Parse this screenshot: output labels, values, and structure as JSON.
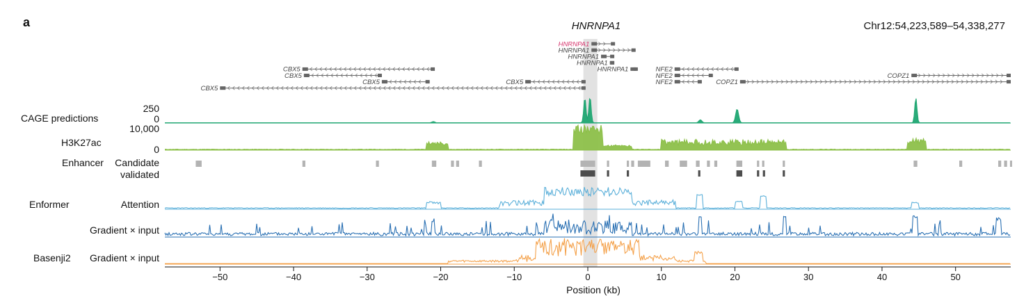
{
  "panel_letter": "a",
  "gene_title": "HNRNPA1",
  "coordinates": "Chr12:54,223,589–54,338,277",
  "genes": [
    {
      "name": "HNRNPA1",
      "start": 0.5,
      "end": 3.7,
      "row": 0,
      "strand": "+",
      "highlight": true
    },
    {
      "name": "HNRNPA1",
      "start": 0.5,
      "end": 6.5,
      "row": 1,
      "strand": "+",
      "highlight": false
    },
    {
      "name": "HNRNPA1",
      "start": 1.8,
      "end": 3.6,
      "row": 2,
      "strand": "+",
      "highlight": false
    },
    {
      "name": "HNRNPA1",
      "start": 3.0,
      "end": 3.6,
      "row": 3,
      "strand": "+",
      "highlight": false
    },
    {
      "name": "HNRNPA1",
      "start": 5.8,
      "end": 6.8,
      "row": 4,
      "strand": "+",
      "highlight": false
    },
    {
      "name": "CBX5",
      "start": -38.8,
      "end": -20.8,
      "row": 4,
      "strand": "-",
      "highlight": false
    },
    {
      "name": "CBX5",
      "start": -38.6,
      "end": -28.0,
      "row": 5,
      "strand": "-",
      "highlight": false
    },
    {
      "name": "CBX5",
      "start": -28.0,
      "end": -21.5,
      "row": 6,
      "strand": "-",
      "highlight": false
    },
    {
      "name": "CBX5",
      "start": -8.5,
      "end": -0.3,
      "row": 6,
      "strand": "-",
      "highlight": false
    },
    {
      "name": "CBX5",
      "start": -50.0,
      "end": -0.3,
      "row": 7,
      "strand": "-",
      "highlight": false
    },
    {
      "name": "NFE2",
      "start": 11.8,
      "end": 20.5,
      "row": 4,
      "strand": "-",
      "highlight": false
    },
    {
      "name": "NFE2",
      "start": 11.8,
      "end": 17.0,
      "row": 5,
      "strand": "-",
      "highlight": false
    },
    {
      "name": "NFE2",
      "start": 11.8,
      "end": 15.5,
      "row": 6,
      "strand": "-",
      "highlight": false
    },
    {
      "name": "COPZ1",
      "start": 44.0,
      "end": 57.5,
      "row": 5,
      "strand": "+",
      "highlight": false
    },
    {
      "name": "COPZ1",
      "start": 20.7,
      "end": 57.5,
      "row": 6,
      "strand": "+",
      "highlight": false
    }
  ],
  "tracks": {
    "cage": {
      "label": "CAGE predictions",
      "ymax": "250",
      "ymin": "0",
      "color": "#1fa672"
    },
    "h3k27ac": {
      "label": "H3K27ac",
      "ymax": "10,000",
      "ymin": "0",
      "color": "#8dc04a"
    },
    "enhancer": {
      "label_left": "Enhancer",
      "label_candidate": "Candidate",
      "label_validated": "validated",
      "candidate_color": "#b3b3b3",
      "validated_color": "#4d4d4d",
      "candidate": [
        [
          -53.3,
          -52.5
        ],
        [
          -38.8,
          -38.4
        ],
        [
          -28.8,
          -28.4
        ],
        [
          -21.2,
          -20.6
        ],
        [
          -18.6,
          -18.2
        ],
        [
          -17.9,
          -17.5
        ],
        [
          -14.8,
          -14.4
        ],
        [
          -1.0,
          1.0
        ],
        [
          2.6,
          2.9
        ],
        [
          5.3,
          5.6
        ],
        [
          5.9,
          6.3
        ],
        [
          6.8,
          8.5
        ],
        [
          10.5,
          11.0
        ],
        [
          12.5,
          13.5
        ],
        [
          14.7,
          15.2
        ],
        [
          16.2,
          16.6
        ],
        [
          17.2,
          17.6
        ],
        [
          20.2,
          21.0
        ],
        [
          23.0,
          23.3
        ],
        [
          23.7,
          24.0
        ],
        [
          26.5,
          26.8
        ],
        [
          44.3,
          44.8
        ],
        [
          50.5,
          50.9
        ],
        [
          55.8,
          56.2
        ],
        [
          56.6,
          57.0
        ],
        [
          57.4,
          57.6
        ]
      ],
      "validated": [
        [
          -1.0,
          1.0
        ],
        [
          2.6,
          2.9
        ],
        [
          5.3,
          5.6
        ],
        [
          15.0,
          15.3
        ],
        [
          20.2,
          21.0
        ],
        [
          23.0,
          23.3
        ],
        [
          23.8,
          24.1
        ],
        [
          26.5,
          26.8
        ]
      ]
    },
    "attention": {
      "label": "Attention",
      "color": "#5aafd9"
    },
    "grad_enformer": {
      "label": "Gradient × input",
      "color": "#2a70b3"
    },
    "grad_basenji": {
      "label": "Gradient × input",
      "color": "#f4a14a"
    }
  },
  "model_labels": {
    "enformer": "Enformer",
    "basenji": "Basenji2"
  },
  "center_highlight": {
    "start": -0.6,
    "end": 1.3,
    "color": "#e2e2e2"
  },
  "axis": {
    "label": "Position (kb)",
    "min": -57.5,
    "max": 57.5,
    "ticks": [
      -50,
      -40,
      -30,
      -20,
      -10,
      0,
      10,
      20,
      30,
      40,
      50
    ],
    "tick_labels": [
      "−50",
      "−40",
      "−30",
      "−20",
      "−10",
      "0",
      "10",
      "20",
      "30",
      "40",
      "50"
    ]
  }
}
